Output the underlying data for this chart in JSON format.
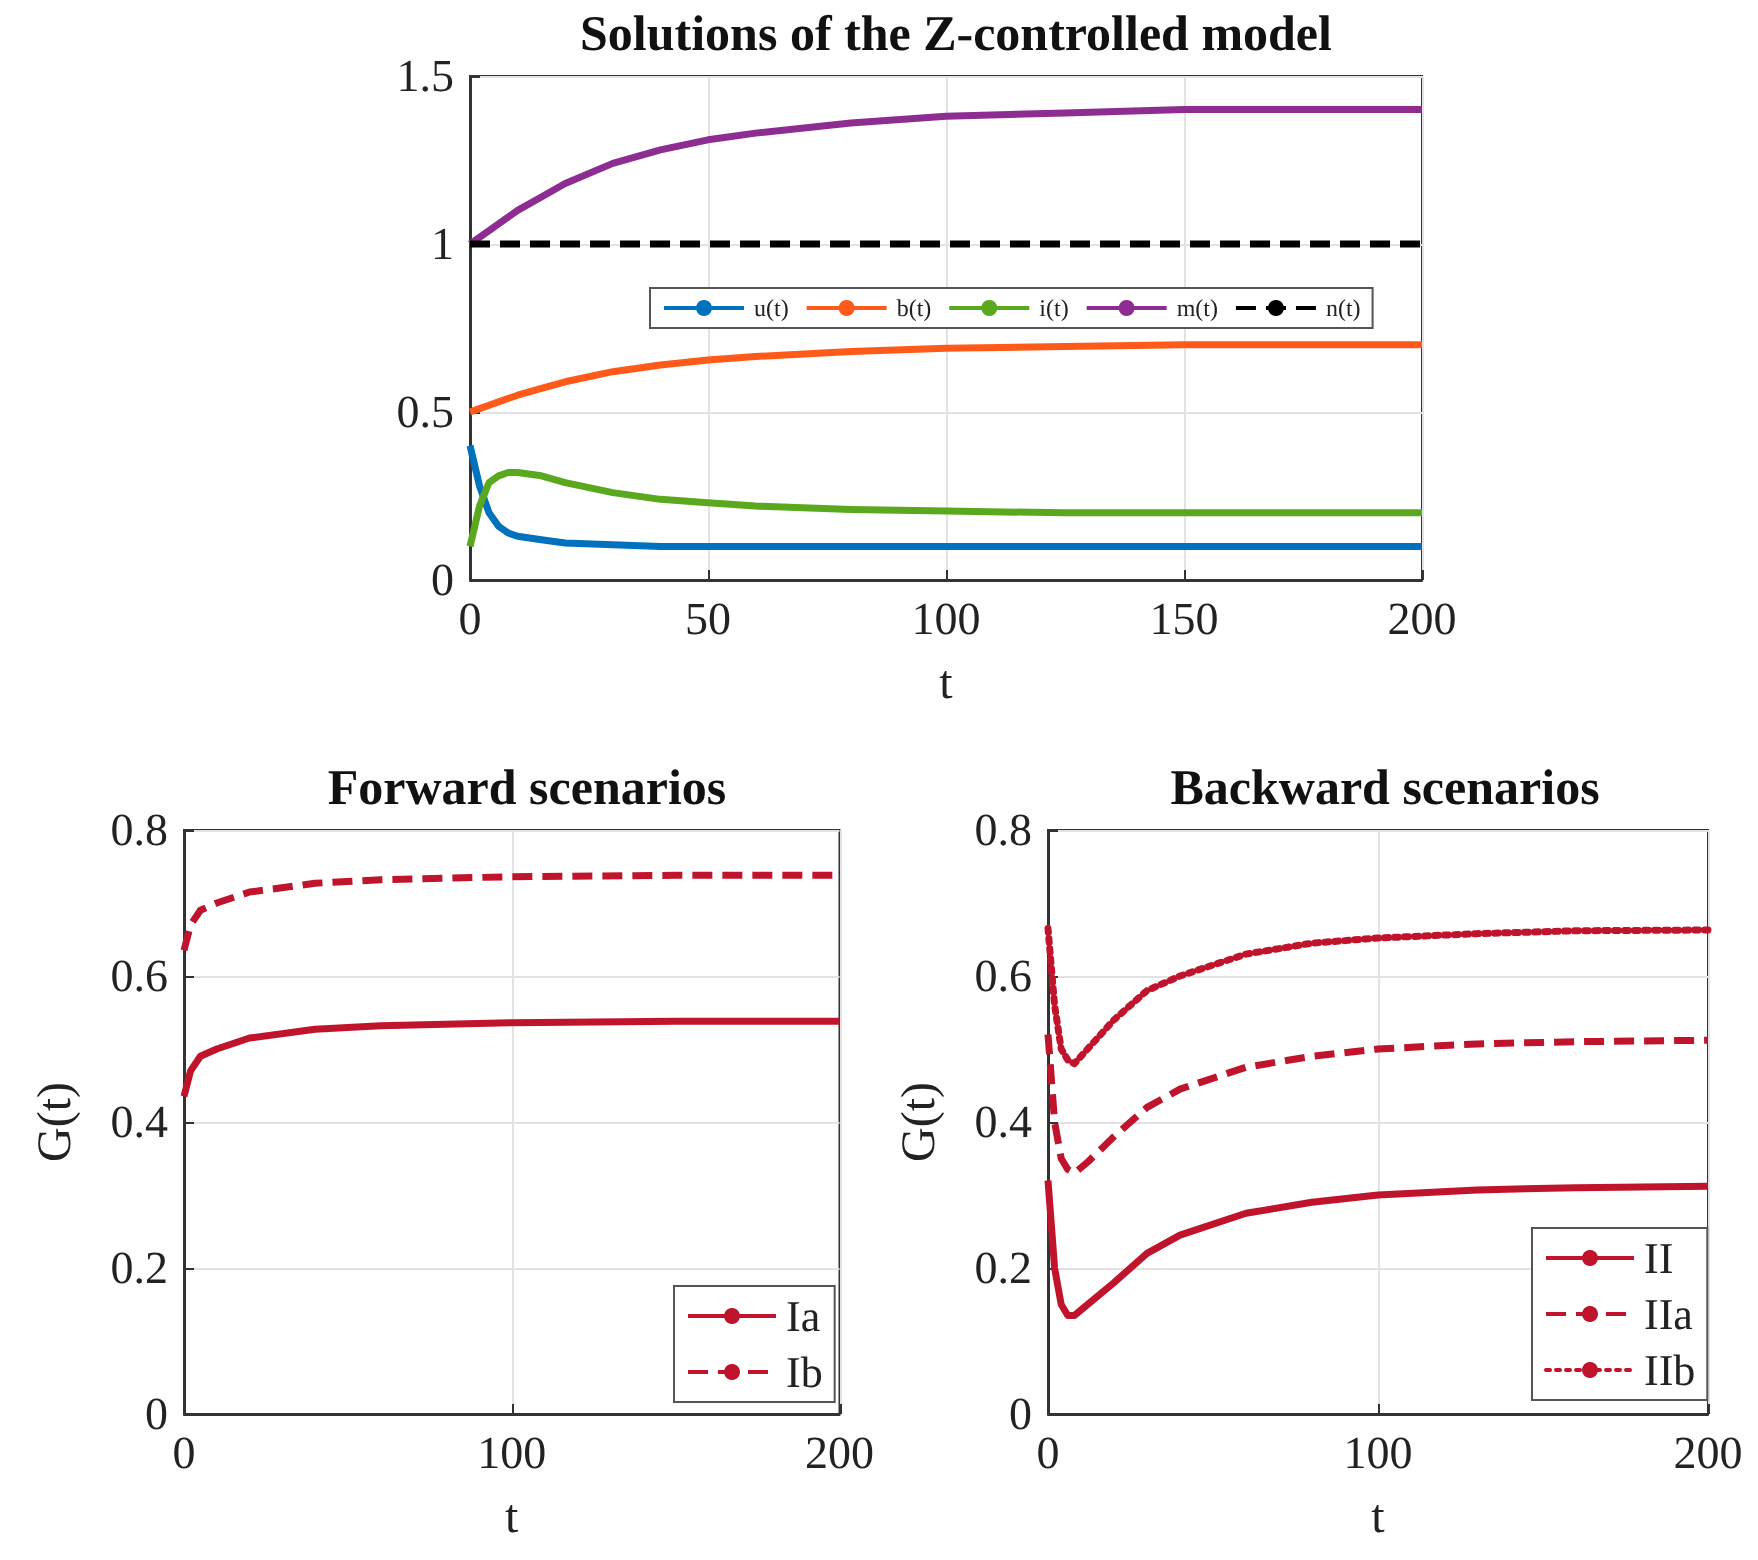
{
  "chart_data": [
    {
      "type": "line",
      "title": "Solutions of the Z-controlled model",
      "xlabel": "t",
      "xlim": [
        0,
        200
      ],
      "xticks": [
        0,
        50,
        100,
        150,
        200
      ],
      "ylim": [
        0,
        1.5
      ],
      "yticks": [
        0,
        0.5,
        1,
        1.5
      ],
      "grid": true,
      "legend": "center",
      "line_style": "solid",
      "x": [
        0,
        2,
        4,
        6,
        8,
        10,
        15,
        20,
        30,
        40,
        50,
        60,
        80,
        100,
        125,
        150,
        175,
        200
      ],
      "series": [
        {
          "name": "u(t)",
          "color": "#0072bd",
          "values": [
            0.4,
            0.28,
            0.2,
            0.16,
            0.14,
            0.13,
            0.12,
            0.11,
            0.105,
            0.1,
            0.1,
            0.1,
            0.1,
            0.1,
            0.1,
            0.1,
            0.1,
            0.1
          ]
        },
        {
          "name": "b(t)",
          "color": "#ff5a1a",
          "values": [
            0.5,
            0.51,
            0.52,
            0.53,
            0.54,
            0.55,
            0.57,
            0.59,
            0.62,
            0.64,
            0.655,
            0.665,
            0.68,
            0.69,
            0.695,
            0.7,
            0.7,
            0.7
          ]
        },
        {
          "name": "i(t)",
          "color": "#5aa81e",
          "values": [
            0.1,
            0.22,
            0.29,
            0.31,
            0.32,
            0.32,
            0.31,
            0.29,
            0.26,
            0.24,
            0.23,
            0.22,
            0.21,
            0.205,
            0.2,
            0.2,
            0.2,
            0.2
          ]
        },
        {
          "name": "m(t)",
          "color": "#8e2d91",
          "values": [
            1,
            1.02,
            1.04,
            1.06,
            1.08,
            1.1,
            1.14,
            1.18,
            1.24,
            1.28,
            1.31,
            1.33,
            1.36,
            1.38,
            1.39,
            1.4,
            1.4,
            1.4
          ]
        },
        {
          "name": "n(t)",
          "color": "#000000",
          "line_style": "dashed",
          "values": [
            1,
            1,
            1,
            1,
            1,
            1,
            1,
            1,
            1,
            1,
            1,
            1,
            1,
            1,
            1,
            1,
            1,
            1
          ]
        }
      ]
    },
    {
      "type": "line",
      "title": "Forward scenarios",
      "xlabel": "t",
      "ylabel": "G(t)",
      "xlim": [
        0,
        200
      ],
      "xticks": [
        0,
        100,
        200
      ],
      "ylim": [
        0,
        0.8
      ],
      "yticks": [
        0,
        0.2,
        0.4,
        0.6,
        0.8
      ],
      "grid": true,
      "legend": "bottom right",
      "x": [
        0,
        2,
        5,
        10,
        20,
        40,
        60,
        100,
        150,
        200
      ],
      "series": [
        {
          "name": "Ia",
          "color": "#c0142c",
          "line_style": "solid",
          "values": [
            0.435,
            0.47,
            0.49,
            0.5,
            0.515,
            0.527,
            0.532,
            0.536,
            0.538,
            0.538
          ]
        },
        {
          "name": "Ib",
          "color": "#c0142c",
          "line_style": "dashed",
          "values": [
            0.635,
            0.67,
            0.69,
            0.7,
            0.715,
            0.727,
            0.732,
            0.736,
            0.738,
            0.738
          ]
        }
      ]
    },
    {
      "type": "line",
      "title": "Backward scenarios",
      "xlabel": "t",
      "ylabel": "G(t)",
      "xlim": [
        0,
        200
      ],
      "xticks": [
        0,
        100,
        200
      ],
      "ylim": [
        0,
        0.8
      ],
      "yticks": [
        0,
        0.2,
        0.4,
        0.6,
        0.8
      ],
      "grid": true,
      "legend": "bottom right",
      "x": [
        0,
        2,
        4,
        6,
        8,
        12,
        20,
        30,
        40,
        60,
        80,
        100,
        130,
        160,
        200
      ],
      "series": [
        {
          "name": "II",
          "color": "#c0142c",
          "line_style": "solid",
          "values": [
            0.32,
            0.2,
            0.15,
            0.135,
            0.135,
            0.15,
            0.18,
            0.22,
            0.245,
            0.275,
            0.29,
            0.3,
            0.307,
            0.31,
            0.312
          ]
        },
        {
          "name": "IIa",
          "color": "#c0142c",
          "line_style": "dashed",
          "values": [
            0.52,
            0.4,
            0.35,
            0.335,
            0.33,
            0.345,
            0.38,
            0.42,
            0.445,
            0.475,
            0.49,
            0.5,
            0.507,
            0.51,
            0.512
          ]
        },
        {
          "name": "IIb",
          "color": "#c0142c",
          "line_style": "dotted",
          "values": [
            0.665,
            0.56,
            0.5,
            0.485,
            0.48,
            0.5,
            0.54,
            0.58,
            0.6,
            0.63,
            0.645,
            0.652,
            0.658,
            0.662,
            0.663
          ]
        }
      ]
    }
  ]
}
